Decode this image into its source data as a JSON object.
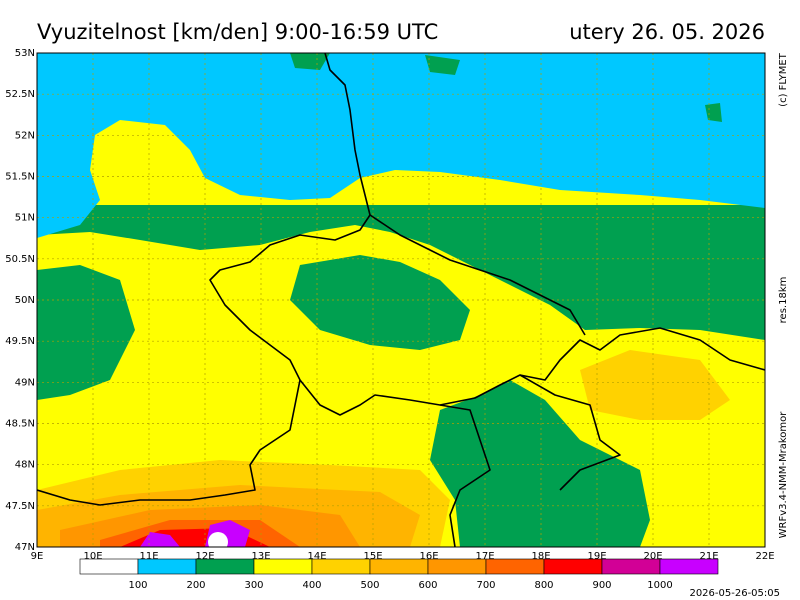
{
  "header": {
    "title": "Vyuzitelnost [km/den] 9:00-16:59 UTC",
    "date": "utery 26. 05. 2026"
  },
  "map": {
    "lat_labels": [
      "53N",
      "52.5N",
      "52N",
      "51.5N",
      "51N",
      "50.5N",
      "50N",
      "49.5N",
      "49N",
      "48.5N",
      "48N",
      "47.5N",
      "47N"
    ],
    "lon_labels": [
      "9E",
      "10E",
      "11E",
      "12E",
      "13E",
      "14E",
      "15E",
      "16E",
      "17E",
      "18E",
      "19E",
      "20E",
      "21E",
      "22E"
    ]
  },
  "colorbar": {
    "levels": [
      100,
      200,
      300,
      400,
      500,
      600,
      700,
      800,
      900,
      1000
    ],
    "colors": [
      "#ffffff",
      "#00c8ff",
      "#00a050",
      "#ffff00",
      "#ffd200",
      "#ffb400",
      "#ff9600",
      "#ff6400",
      "#ff0000",
      "#d20096",
      "#c800ff"
    ]
  },
  "side": {
    "copyright": "(c) FLYMET",
    "resolution": "res.18km",
    "model": "WRFv3.4-NMM-Mrakomor"
  },
  "footer": {
    "timestamp": "2026-05-26-05:05"
  }
}
